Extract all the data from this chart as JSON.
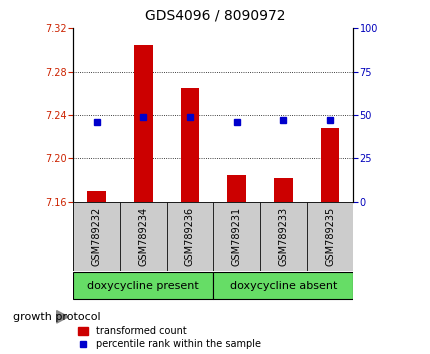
{
  "title": "GDS4096 / 8090972",
  "samples": [
    "GSM789232",
    "GSM789234",
    "GSM789236",
    "GSM789231",
    "GSM789233",
    "GSM789235"
  ],
  "bar_values": [
    7.17,
    7.305,
    7.265,
    7.185,
    7.182,
    7.228
  ],
  "bar_base": 7.16,
  "percentile_values": [
    46,
    49,
    49,
    46,
    47,
    47
  ],
  "percentile_scale_min": 0,
  "percentile_scale_max": 100,
  "ylim_left": [
    7.16,
    7.32
  ],
  "yticks_left": [
    7.16,
    7.2,
    7.24,
    7.28,
    7.32
  ],
  "yticks_right": [
    0,
    25,
    50,
    75,
    100
  ],
  "bar_color": "#cc0000",
  "dot_color": "#0000cc",
  "grid_color": "#000000",
  "left_tick_color": "#cc2200",
  "right_tick_color": "#0000bb",
  "group1_label": "doxycycline present",
  "group2_label": "doxycycline absent",
  "group1_indices": [
    0,
    1,
    2
  ],
  "group2_indices": [
    3,
    4,
    5
  ],
  "group_color": "#66dd66",
  "xlabel_label": "growth protocol",
  "legend_bar_label": "transformed count",
  "legend_dot_label": "percentile rank within the sample",
  "bg_plot": "#ffffff",
  "bg_sample": "#cccccc",
  "title_fontsize": 10,
  "tick_fontsize": 7,
  "sample_fontsize": 7,
  "group_fontsize": 8,
  "legend_fontsize": 7,
  "gp_fontsize": 8
}
